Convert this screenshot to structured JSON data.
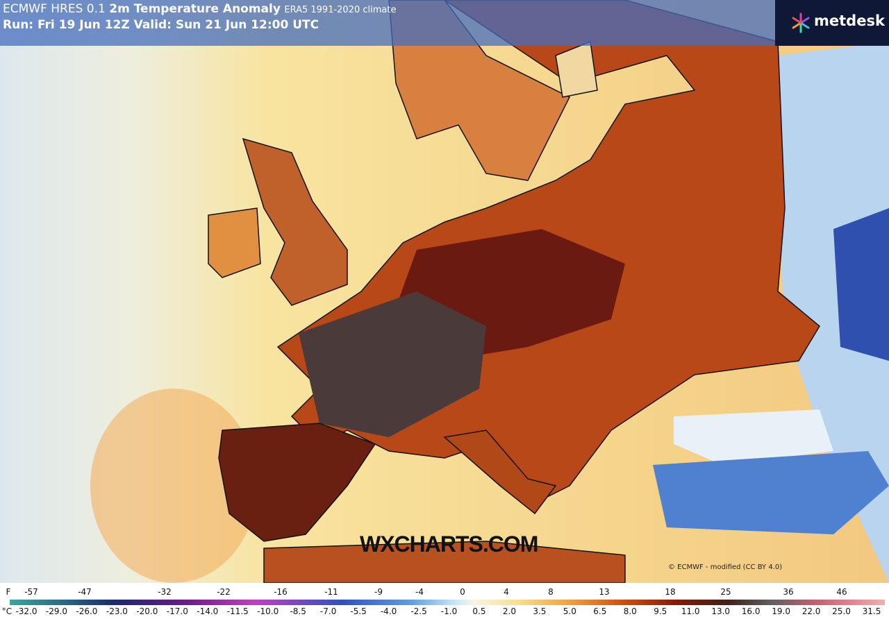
{
  "header": {
    "title": "ECMWF HRES 0.1",
    "title_bold": "2m Temperature Anomaly",
    "climate": "ERA5 1991-2020 climate",
    "run": "Run: Fri 19 Jun 12Z Valid: Sun 21 Jun 12:00 UTC"
  },
  "logo": "metdesk",
  "watermark": "WXCHARTS.COM",
  "copyright": "© ECMWF - modified (CC BY 4.0)",
  "colorbar": {
    "f_unit": "F",
    "f_labels": [
      "-57",
      "-47",
      "-32",
      "-22",
      "-16",
      "-11",
      "-9",
      "-4",
      "0",
      "4",
      "8",
      "13",
      "18",
      "25",
      "36",
      "46"
    ],
    "c_unit": "°C",
    "c_labels": [
      "-32.0",
      "-29.0",
      "-26.0",
      "-23.0",
      "-20.0",
      "-17.0",
      "-14.0",
      "-11.5",
      "-10.0",
      "-8.5",
      "-7.0",
      "-5.5",
      "-4.0",
      "-2.5",
      "-1.0",
      "0.5",
      "2.0",
      "3.5",
      "5.0",
      "6.5",
      "8.0",
      "9.5",
      "11.0",
      "13.0",
      "16.0",
      "19.0",
      "22.0",
      "25.0",
      "31.5"
    ]
  }
}
